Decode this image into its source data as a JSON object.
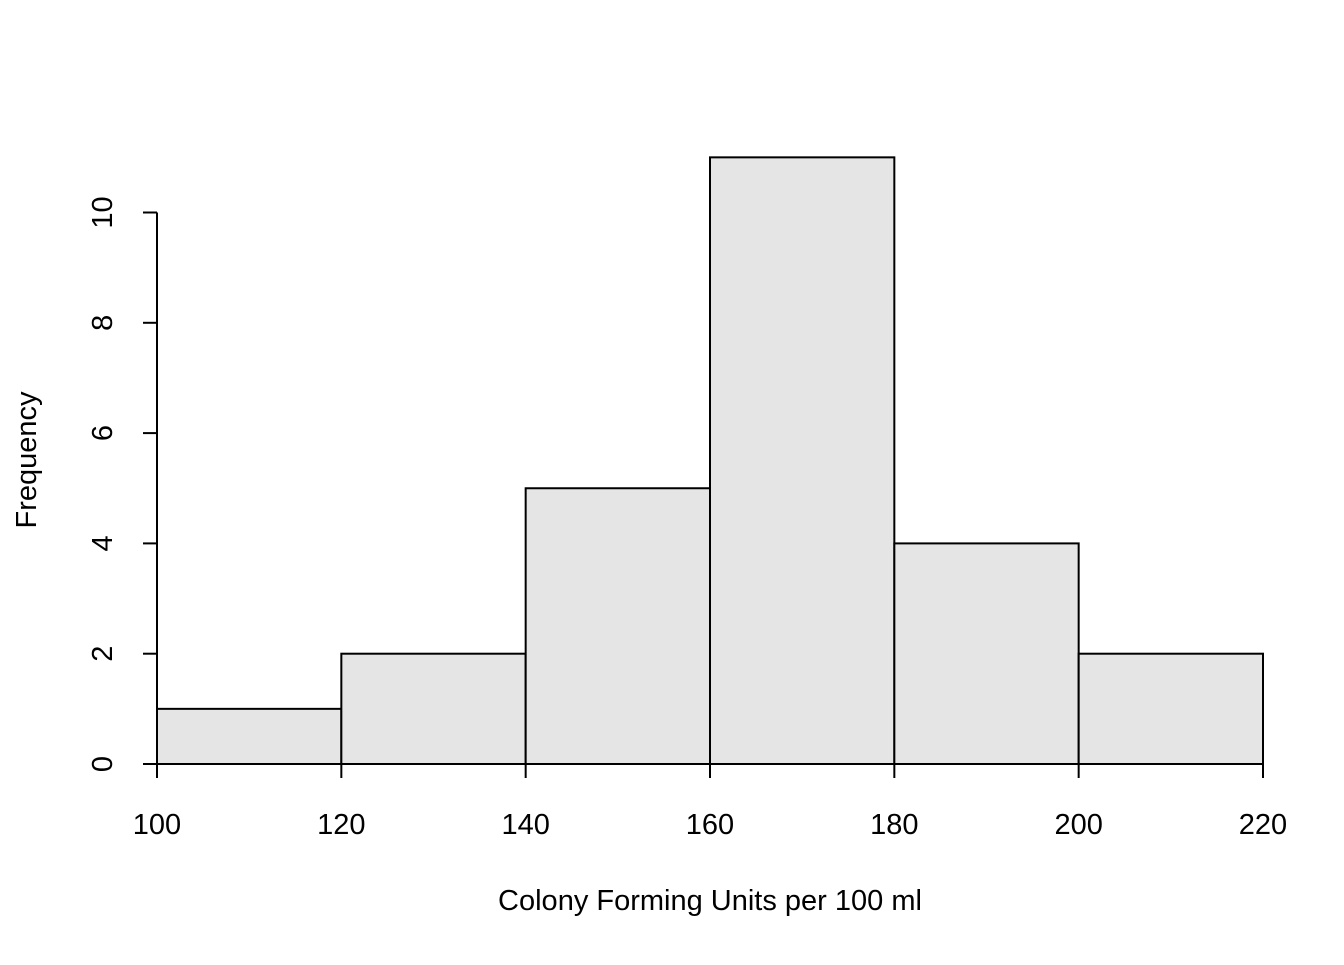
{
  "chart_data": {
    "type": "bar",
    "title": "",
    "xlabel": "Colony Forming Units per 100 ml",
    "ylabel": "Frequency",
    "bins": [
      {
        "start": 100,
        "end": 120,
        "count": 1
      },
      {
        "start": 120,
        "end": 140,
        "count": 2
      },
      {
        "start": 140,
        "end": 160,
        "count": 5
      },
      {
        "start": 160,
        "end": 180,
        "count": 11
      },
      {
        "start": 180,
        "end": 200,
        "count": 4
      },
      {
        "start": 200,
        "end": 220,
        "count": 2
      }
    ],
    "x_ticks": [
      "100",
      "120",
      "140",
      "160",
      "180",
      "200",
      "220"
    ],
    "y_ticks": [
      "0",
      "2",
      "4",
      "6",
      "8",
      "10"
    ],
    "xlim": [
      100,
      220
    ],
    "ylim": [
      0,
      11
    ],
    "grid": false,
    "legend": "none",
    "bar_fill": "#e5e5e5",
    "bar_stroke": "#000000"
  }
}
